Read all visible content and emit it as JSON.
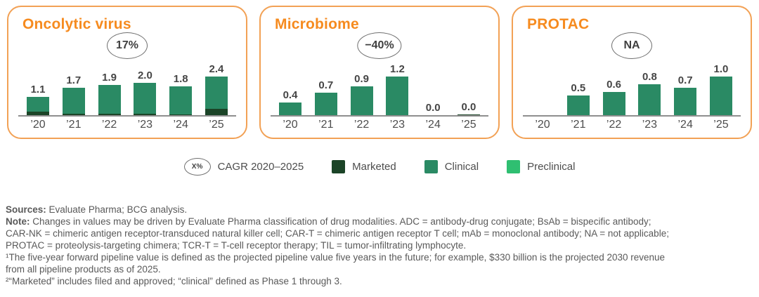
{
  "colors": {
    "accent_orange": "#F68B1F",
    "panel_border_orange": "#F2A155",
    "marketed_green": "#1B4427",
    "clinical_green": "#2A8A64",
    "preclinical_green": "#2FBF71",
    "axis_gray": "#8F8F8F",
    "text_gray": "#595959"
  },
  "chart_data": [
    {
      "type": "bar",
      "stacked": true,
      "title": "Oncolytic virus",
      "cagr_2020_2025": "17%",
      "categories": [
        "’20",
        "’21",
        "’22",
        "’23",
        "’24",
        "’25"
      ],
      "bar_labels": [
        "1.1",
        "1.7",
        "1.9",
        "2.0",
        "1.8",
        "2.4"
      ],
      "totals": [
        1.1,
        1.7,
        1.9,
        2.0,
        1.8,
        2.4
      ],
      "series": [
        {
          "name": "Marketed",
          "values": [
            0.2,
            0.1,
            0.1,
            0.1,
            0.05,
            0.4
          ]
        },
        {
          "name": "Clinical",
          "values": [
            0.9,
            1.6,
            1.8,
            1.9,
            1.75,
            2.0
          ]
        },
        {
          "name": "Preclinical",
          "values": [
            0,
            0,
            0,
            0,
            0,
            0
          ]
        }
      ],
      "ylim": [
        0,
        2.4
      ],
      "grid": false
    },
    {
      "type": "bar",
      "stacked": true,
      "title": "Microbiome",
      "cagr_2020_2025": "−40%",
      "categories": [
        "’20",
        "’21",
        "’22",
        "’23",
        "’24",
        "’25"
      ],
      "bar_labels": [
        "0.4",
        "0.7",
        "0.9",
        "1.2",
        "0.0",
        "0.0"
      ],
      "totals": [
        0.4,
        0.7,
        0.9,
        1.2,
        0.0,
        0.0
      ],
      "series": [
        {
          "name": "Marketed",
          "values": [
            0,
            0,
            0,
            0,
            0,
            0.02
          ]
        },
        {
          "name": "Clinical",
          "values": [
            0.4,
            0.7,
            0.9,
            1.2,
            0,
            0
          ]
        },
        {
          "name": "Preclinical",
          "values": [
            0,
            0,
            0,
            0,
            0,
            0
          ]
        }
      ],
      "ylim": [
        0,
        1.2
      ],
      "grid": false
    },
    {
      "type": "bar",
      "stacked": true,
      "title": "PROTAC",
      "cagr_2020_2025": "NA",
      "categories": [
        "’20",
        "’21",
        "’22",
        "’23",
        "’24",
        "’25"
      ],
      "bar_labels": [
        "",
        "0.5",
        "0.6",
        "0.8",
        "0.7",
        "1.0"
      ],
      "totals": [
        0,
        0.5,
        0.6,
        0.8,
        0.7,
        1.0
      ],
      "series": [
        {
          "name": "Marketed",
          "values": [
            0,
            0,
            0,
            0,
            0,
            0
          ]
        },
        {
          "name": "Clinical",
          "values": [
            0,
            0.5,
            0.6,
            0.8,
            0.7,
            1.0
          ]
        },
        {
          "name": "Preclinical",
          "values": [
            0,
            0,
            0,
            0,
            0,
            0
          ]
        }
      ],
      "ylim": [
        0,
        1.0
      ],
      "grid": false
    }
  ],
  "legend": {
    "cagr_symbol": "X%",
    "cagr_label": "CAGR 2020–2025",
    "items": [
      {
        "label": "Marketed",
        "color": "#1B4427"
      },
      {
        "label": "Clinical",
        "color": "#2A8A64"
      },
      {
        "label": "Preclinical",
        "color": "#2FBF71"
      }
    ]
  },
  "notes": {
    "sources_label": "Sources:",
    "sources_text": " Evaluate Pharma; BCG analysis.",
    "note_label": "Note:",
    "note_text": " Changes in values may be driven by Evaluate Pharma classification of drug modalities. ADC = antibody-drug conjugate; BsAb = bispecific antibody;",
    "note_line2": "CAR-NK = chimeric antigen receptor-transduced natural killer cell; CAR-T = chimeric antigen receptor T cell; mAb = monoclonal antibody; NA = not applicable;",
    "note_line3": "PROTAC = proteolysis-targeting chimera; TCR-T = T-cell receptor therapy; TIL = tumor-infiltrating lymphocyte.",
    "footnote1_line1": "¹The five-year forward pipeline value is defined as the projected pipeline value five years in the future; for example, $330 billion is the projected 2030 revenue",
    "footnote1_line2": "from all pipeline products as of 2025.",
    "footnote2": "²“Marketed” includes filed and approved; “clinical” defined as Phase 1 through 3."
  }
}
